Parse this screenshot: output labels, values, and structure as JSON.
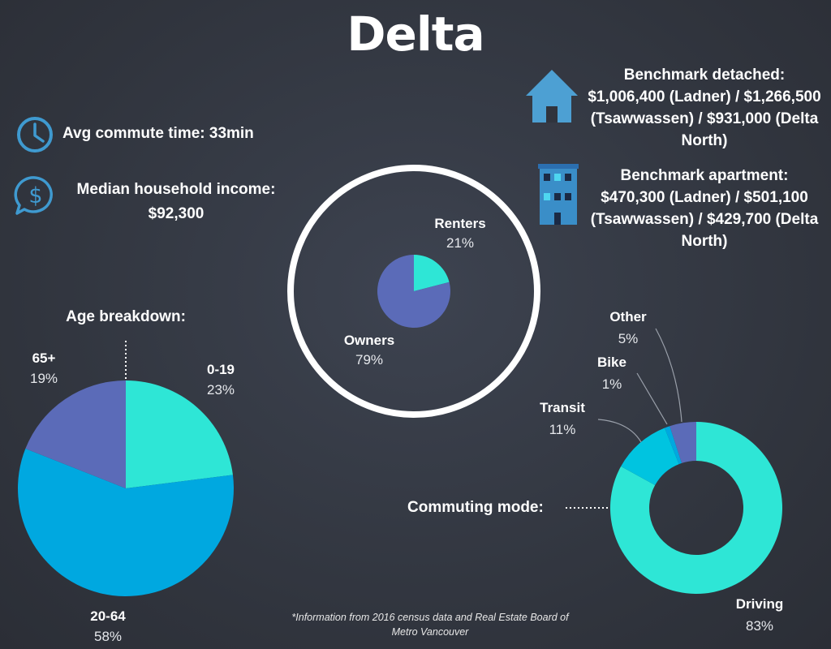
{
  "title": "Delta",
  "commute": {
    "label": "Avg commute time: 33min",
    "icon": "clock-icon"
  },
  "income": {
    "label": "Median household income:",
    "value": "$92,300",
    "icon": "dollar-icon"
  },
  "detached": {
    "icon": "house-icon",
    "lines": [
      "Benchmark detached:",
      "$1,006,400 (Ladner) / $1,266,500",
      "(Tsawwassen) / $931,000 (Delta",
      "North)"
    ]
  },
  "apartment": {
    "icon": "apartment-building-icon",
    "lines": [
      "Benchmark apartment:",
      "$470,300 (Ladner) / $501,100",
      "(Tsawwassen) / $429,700 (Delta",
      "North)"
    ]
  },
  "footnote": [
    "*Information from 2016 census data and Real Estate Board of",
    "Metro Vancouver"
  ],
  "colors": {
    "teal": "#2ee6d6",
    "blue": "#00a8e0",
    "purple": "#5b6bb8",
    "cyan": "#00c4e0"
  },
  "chart_data": [
    {
      "type": "pie",
      "title": "Age breakdown:",
      "categories": [
        "0-19",
        "20-64",
        "65+"
      ],
      "values": [
        23,
        58,
        19
      ],
      "value_labels": [
        "23%",
        "58%",
        "19%"
      ]
    },
    {
      "type": "pie",
      "title": "",
      "categories": [
        "Renters",
        "Owners"
      ],
      "values": [
        21,
        79
      ],
      "value_labels": [
        "21%",
        "79%"
      ]
    },
    {
      "type": "donut",
      "title": "Commuting mode:",
      "categories": [
        "Driving",
        "Transit",
        "Bike",
        "Other"
      ],
      "values": [
        83,
        11,
        1,
        5
      ],
      "value_labels": [
        "83%",
        "11%",
        "1%",
        "5%"
      ]
    }
  ]
}
